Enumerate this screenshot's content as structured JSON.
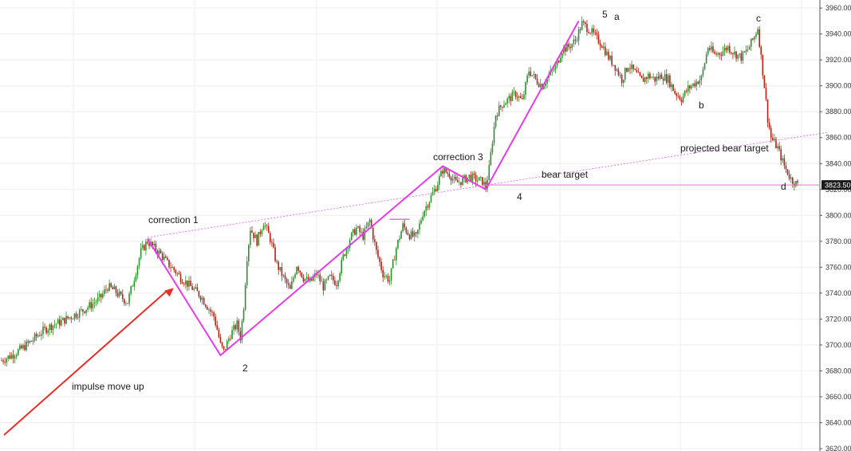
{
  "chart_data": {
    "type": "candlestick",
    "y_axis": {
      "side": "right",
      "min": 3620,
      "max": 3965,
      "ticks": [
        3620,
        3640,
        3660,
        3680,
        3700,
        3720,
        3740,
        3760,
        3780,
        3800,
        3820,
        3840,
        3860,
        3880,
        3900,
        3920,
        3940,
        3960
      ],
      "tick_labels": [
        "3620.00",
        "3640.00",
        "3660.00",
        "3680.00",
        "3700.00",
        "3720.00",
        "3740.00",
        "3760.00",
        "3780.00",
        "3800.00",
        "3820.00",
        "3840.00",
        "3860.00",
        "3880.00",
        "3900.00",
        "3920.00",
        "3940.00",
        "3960.00"
      ]
    },
    "grid": true,
    "last_price": 3823.5,
    "last_price_label": "3823.50",
    "price_path": [
      [
        0,
        3688
      ],
      [
        3,
        3692
      ],
      [
        6,
        3697
      ],
      [
        9,
        3703
      ],
      [
        12,
        3710
      ],
      [
        15,
        3715
      ],
      [
        18,
        3718
      ],
      [
        21,
        3722
      ],
      [
        24,
        3726
      ],
      [
        27,
        3731
      ],
      [
        30,
        3737
      ],
      [
        32,
        3745
      ],
      [
        34,
        3742
      ],
      [
        36,
        3737
      ],
      [
        38,
        3733
      ],
      [
        40,
        3752
      ],
      [
        42,
        3772
      ],
      [
        44,
        3780
      ],
      [
        46,
        3775
      ],
      [
        48,
        3770
      ],
      [
        50,
        3763
      ],
      [
        52,
        3758
      ],
      [
        54,
        3752
      ],
      [
        57,
        3745
      ],
      [
        60,
        3738
      ],
      [
        62,
        3730
      ],
      [
        64,
        3722
      ],
      [
        65,
        3712
      ],
      [
        66,
        3700
      ],
      [
        67,
        3695
      ],
      [
        69,
        3708
      ],
      [
        71,
        3716
      ],
      [
        72,
        3706
      ],
      [
        73,
        3730
      ],
      [
        74,
        3768
      ],
      [
        75,
        3790
      ],
      [
        77,
        3780
      ],
      [
        79,
        3795
      ],
      [
        81,
        3782
      ],
      [
        83,
        3762
      ],
      [
        85,
        3752
      ],
      [
        87,
        3742
      ],
      [
        89,
        3762
      ],
      [
        91,
        3752
      ],
      [
        93,
        3748
      ],
      [
        95,
        3755
      ],
      [
        97,
        3745
      ],
      [
        99,
        3752
      ],
      [
        101,
        3748
      ],
      [
        103,
        3768
      ],
      [
        105,
        3782
      ],
      [
        107,
        3790
      ],
      [
        109,
        3784
      ],
      [
        111,
        3796
      ],
      [
        113,
        3772
      ],
      [
        115,
        3755
      ],
      [
        117,
        3750
      ],
      [
        119,
        3775
      ],
      [
        121,
        3792
      ],
      [
        123,
        3785
      ],
      [
        125,
        3783
      ],
      [
        127,
        3802
      ],
      [
        129,
        3812
      ],
      [
        131,
        3822
      ],
      [
        133,
        3835
      ],
      [
        135,
        3832
      ],
      [
        137,
        3825
      ],
      [
        139,
        3827
      ],
      [
        141,
        3830
      ],
      [
        143,
        3828
      ],
      [
        145,
        3826
      ],
      [
        146,
        3822
      ],
      [
        147,
        3836
      ],
      [
        148,
        3858
      ],
      [
        149,
        3878
      ],
      [
        151,
        3886
      ],
      [
        153,
        3890
      ],
      [
        155,
        3894
      ],
      [
        157,
        3888
      ],
      [
        159,
        3912
      ],
      [
        161,
        3905
      ],
      [
        163,
        3900
      ],
      [
        165,
        3908
      ],
      [
        167,
        3914
      ],
      [
        169,
        3928
      ],
      [
        171,
        3930
      ],
      [
        173,
        3935
      ],
      [
        175,
        3948
      ],
      [
        177,
        3944
      ],
      [
        179,
        3938
      ],
      [
        181,
        3932
      ],
      [
        183,
        3922
      ],
      [
        185,
        3915
      ],
      [
        187,
        3905
      ],
      [
        189,
        3916
      ],
      [
        191,
        3910
      ],
      [
        193,
        3904
      ],
      [
        195,
        3908
      ],
      [
        197,
        3905
      ],
      [
        199,
        3908
      ],
      [
        201,
        3905
      ],
      [
        203,
        3895
      ],
      [
        205,
        3890
      ],
      [
        207,
        3898
      ],
      [
        209,
        3902
      ],
      [
        211,
        3906
      ],
      [
        213,
        3930
      ],
      [
        215,
        3924
      ],
      [
        217,
        3926
      ],
      [
        219,
        3930
      ],
      [
        221,
        3925
      ],
      [
        223,
        3922
      ],
      [
        225,
        3928
      ],
      [
        227,
        3938
      ],
      [
        228,
        3945
      ],
      [
        229,
        3922
      ],
      [
        230,
        3900
      ],
      [
        231,
        3875
      ],
      [
        232,
        3860
      ],
      [
        234,
        3852
      ],
      [
        236,
        3838
      ],
      [
        238,
        3828
      ],
      [
        240,
        3823.5
      ]
    ],
    "wave_path": [
      [
        0,
        3782
      ],
      [
        1,
        3692
      ],
      [
        2,
        3705
      ],
      [
        3,
        3838
      ],
      [
        4,
        3820
      ],
      [
        5,
        3950
      ]
    ],
    "wave_guide": [
      [
        1,
        3797
      ],
      [
        2,
        3797
      ]
    ],
    "trendlines": [
      {
        "name": "correction 1 to projected target",
        "style": "dotted",
        "from": [
          44,
          3783
        ],
        "to": [
          268,
          3864
        ]
      },
      {
        "name": "bear target",
        "style": "solid",
        "value": 3823.5
      }
    ],
    "annotations": [
      {
        "text": "correction 1",
        "at": [
          42,
          3796
        ]
      },
      {
        "text": "2",
        "at": [
          64,
          3680
        ]
      },
      {
        "text": "correction 3",
        "at": [
          134,
          3840
        ]
      },
      {
        "text": "4",
        "at": [
          146,
          3813
        ]
      },
      {
        "text": "bear target",
        "at": [
          160,
          3828
        ]
      },
      {
        "text": "5",
        "at": [
          174,
          3962
        ]
      },
      {
        "text": "a",
        "at": [
          177,
          3960
        ]
      },
      {
        "text": "b",
        "at": [
          200,
          3894
        ]
      },
      {
        "text": "projected bear target",
        "at": [
          198,
          3852
        ]
      },
      {
        "text": "c",
        "at": [
          223,
          3962
        ]
      },
      {
        "text": "d",
        "at": [
          224,
          3818
        ]
      },
      {
        "text": "impulse move up",
        "at": [
          18,
          3668
        ]
      }
    ],
    "arrow": {
      "label_ref": "impulse move up",
      "from": [
        0,
        3660
      ],
      "to": [
        49,
        3744
      ],
      "color": "#e53027"
    },
    "colors": {
      "up_candle": "#2f8f2f",
      "down_candle": "#b02418",
      "wave": "#e53ce6",
      "trendline": "#e86ee8",
      "arrow": "#e53027",
      "grid": "#eeeeee",
      "axis_text": "#333333",
      "price_tag": "#1a1a1a"
    }
  }
}
